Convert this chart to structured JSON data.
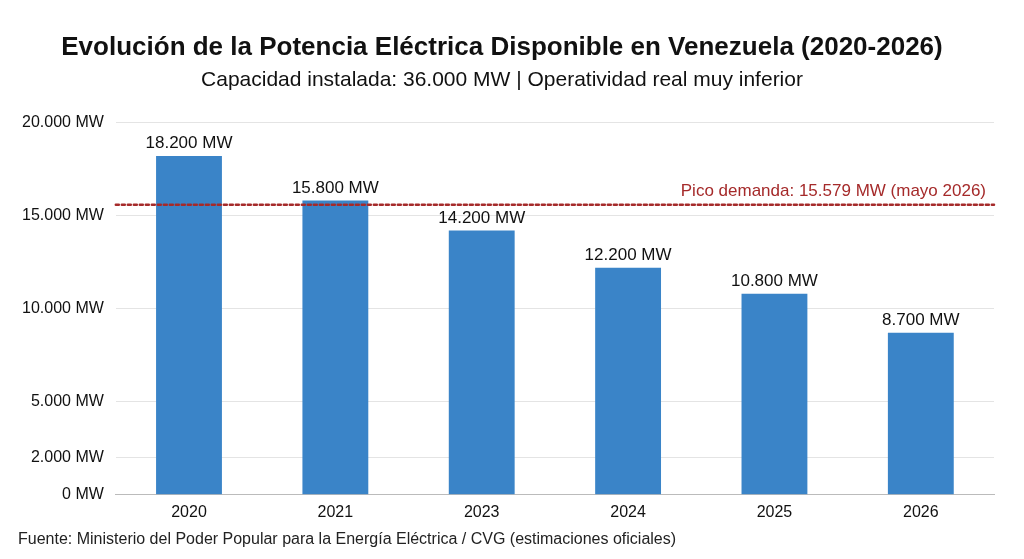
{
  "chart_data": {
    "type": "bar",
    "title": "Evolución de la Potencia Eléctrica Disponible en Venezuela (2020-2026)",
    "subtitle": "Capacidad instalada: 36.000 MW | Operatividad real muy inferior",
    "categories": [
      "2020",
      "2021",
      "2023",
      "2024",
      "2025",
      "2026"
    ],
    "values": [
      18200,
      15800,
      14200,
      12200,
      10800,
      8700
    ],
    "value_labels": [
      "18.200 MW",
      "15.800 MW",
      "14.200 MW",
      "12.200 MW",
      "10.800 MW",
      "8.700 MW"
    ],
    "color": "#3a84c8",
    "ylim": [
      0,
      20000
    ],
    "yticks": [
      {
        "value": 0,
        "label": "0 MW"
      },
      {
        "value": 2000,
        "label": "2.000 MW"
      },
      {
        "value": 5000,
        "label": "5.000 MW"
      },
      {
        "value": 10000,
        "label": "10.000 MW"
      },
      {
        "value": 15000,
        "label": "15.000 MW"
      },
      {
        "value": 20000,
        "label": "20.000 MW"
      }
    ],
    "grid": "y",
    "ref_lines": [
      {
        "axis": "y",
        "value": 15579,
        "label": "Pico demanda: 15.579 MW (mayo 2026)",
        "color": "#a52a2a",
        "line_style": "dotted"
      }
    ],
    "annotations": [
      "Fuente: Ministerio del Poder Popular para la Energía Eléctrica / CVG (estimaciones oficiales)"
    ]
  }
}
